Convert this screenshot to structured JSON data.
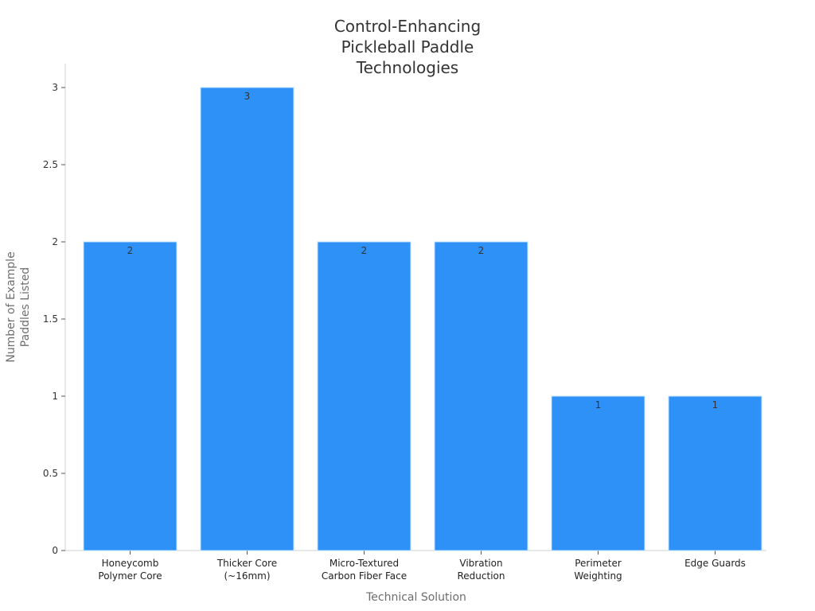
{
  "chart_data": {
    "type": "bar",
    "title": [
      "Control-Enhancing",
      "Pickleball Paddle",
      "Technologies"
    ],
    "xlabel": "Technical Solution",
    "ylabel": [
      "Number of Example",
      "Paddles Listed"
    ],
    "categories": [
      [
        "Honeycomb",
        "Polymer Core"
      ],
      [
        "Thicker Core",
        "(~16mm)"
      ],
      [
        "Micro-Textured",
        "Carbon Fiber Face"
      ],
      [
        "Vibration",
        "Reduction"
      ],
      [
        "Perimeter",
        "Weighting"
      ],
      [
        "Edge Guards"
      ]
    ],
    "values": [
      2,
      3,
      2,
      2,
      1,
      1
    ],
    "data_labels": [
      "2",
      "3",
      "2",
      "2",
      "1",
      "1"
    ],
    "ylim": [
      0,
      3
    ],
    "yticks": [
      0,
      0.5,
      1,
      1.5,
      2,
      2.5,
      3
    ],
    "ytick_labels": [
      "0",
      "0.5",
      "1",
      "1.5",
      "2",
      "2.5",
      "3"
    ],
    "bar_color": "#2e91f7",
    "grid": false,
    "legend": "none"
  }
}
